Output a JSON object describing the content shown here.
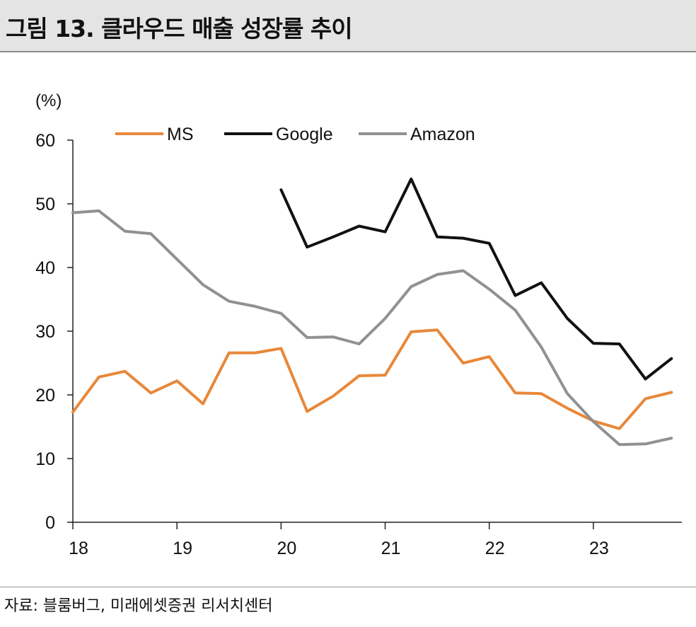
{
  "header": {
    "title": "그림 13. 클라우드 매출 성장률 추이"
  },
  "footer": {
    "source": "자료: 블룸버그, 미래에셋증권 리서치센터"
  },
  "chart_data": {
    "type": "line",
    "ylabel": "(%)",
    "ylim": [
      0,
      60
    ],
    "yticks": [
      0,
      10,
      20,
      30,
      40,
      50,
      60
    ],
    "x_range": [
      18,
      23.85
    ],
    "x_ticks": [
      "18",
      "19",
      "20",
      "21",
      "22",
      "23"
    ],
    "legend_position": "top",
    "grid": false,
    "series": [
      {
        "name": "MS",
        "color": "#e8883a",
        "x": [
          18.0,
          18.25,
          18.5,
          18.75,
          19.0,
          19.25,
          19.5,
          19.75,
          20.0,
          20.25,
          20.5,
          20.75,
          21.0,
          21.25,
          21.5,
          21.75,
          22.0,
          22.25,
          22.5,
          22.75,
          23.0,
          23.25,
          23.5,
          23.75
        ],
        "values": [
          17.3,
          22.8,
          23.7,
          20.3,
          22.2,
          18.6,
          26.6,
          26.6,
          27.3,
          17.4,
          19.8,
          23.0,
          23.1,
          29.9,
          30.2,
          25.0,
          26.0,
          20.3,
          20.2,
          17.9,
          15.9,
          14.7,
          19.4,
          20.4
        ]
      },
      {
        "name": "Google",
        "color": "#111111",
        "x": [
          20.0,
          20.25,
          20.5,
          20.75,
          21.0,
          21.25,
          21.5,
          21.75,
          22.0,
          22.25,
          22.5,
          22.75,
          23.0,
          23.25,
          23.5,
          23.75
        ],
        "values": [
          52.2,
          43.2,
          44.8,
          46.5,
          45.6,
          53.9,
          44.8,
          44.6,
          43.8,
          35.6,
          37.6,
          32.0,
          28.1,
          28.0,
          22.5,
          25.7
        ]
      },
      {
        "name": "Amazon",
        "color": "#8f9194",
        "x": [
          18.0,
          18.25,
          18.5,
          18.75,
          19.0,
          19.25,
          19.5,
          19.75,
          20.0,
          20.25,
          20.5,
          20.75,
          21.0,
          21.25,
          21.5,
          21.75,
          22.0,
          22.25,
          22.5,
          22.75,
          23.0,
          23.25,
          23.5,
          23.75
        ],
        "values": [
          48.6,
          48.9,
          45.7,
          45.3,
          41.3,
          37.3,
          34.7,
          33.9,
          32.8,
          29.0,
          29.1,
          28.0,
          32.0,
          37.0,
          38.9,
          39.5,
          36.6,
          33.3,
          27.5,
          20.2,
          15.8,
          12.2,
          12.3,
          13.2
        ]
      }
    ]
  }
}
